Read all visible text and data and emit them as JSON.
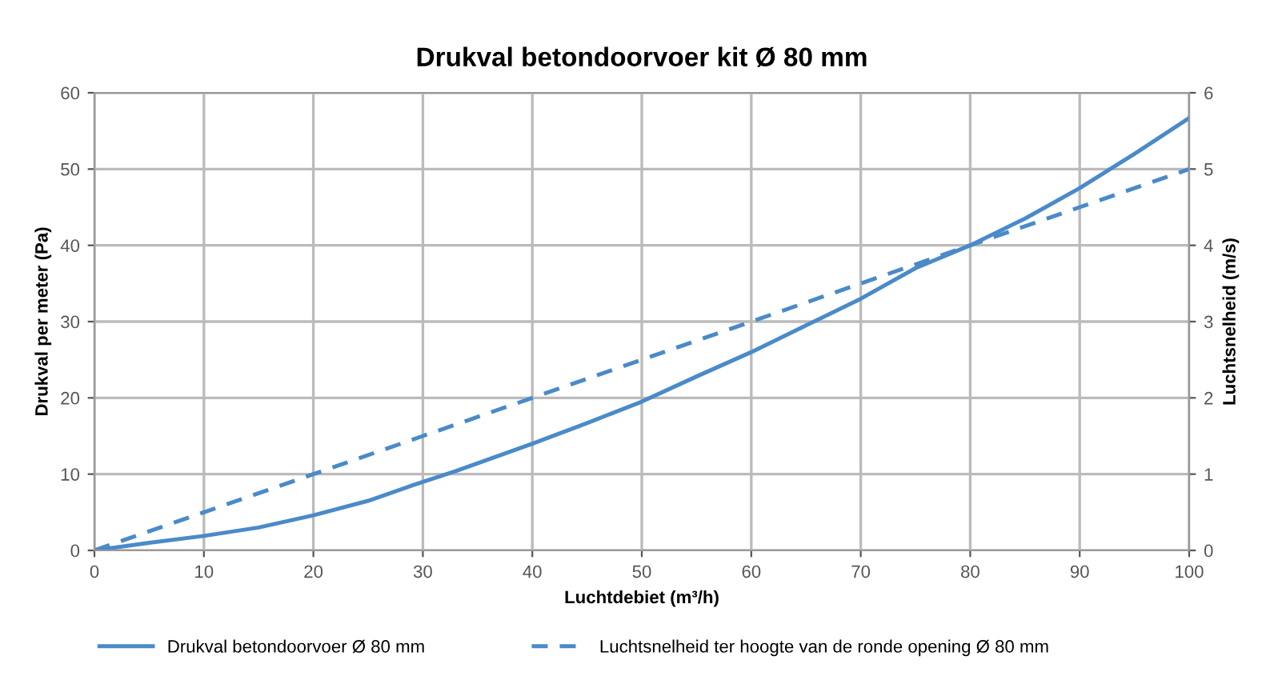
{
  "chart_data": {
    "type": "line",
    "title": "Drukval betondoorvoer kit Ø 80 mm",
    "xlabel": "Luchtdebiet (m³/h)",
    "ylabel": "Drukval per meter (Pa)",
    "y2label": "Luchtsnelheid (m/s)",
    "xlim": [
      0,
      100
    ],
    "xticks": [
      0,
      10,
      20,
      30,
      40,
      50,
      60,
      70,
      80,
      90,
      100
    ],
    "ylim": [
      0,
      60
    ],
    "yticks": [
      0,
      10,
      20,
      30,
      40,
      50,
      60
    ],
    "y2lim": [
      0,
      6
    ],
    "y2ticks": [
      0,
      1,
      2,
      3,
      4,
      5,
      6
    ],
    "grid": true,
    "legend": "bottom",
    "marker": "none",
    "series": [
      {
        "name": "Drukval betondoorvoer Ø 80 mm",
        "color": "#4a8ac9",
        "line_style": "solid",
        "x": [
          0,
          5,
          10,
          15,
          20,
          25,
          29,
          33,
          40,
          45,
          50,
          55,
          60,
          65,
          70,
          75,
          80,
          85,
          90,
          95,
          100
        ],
        "values": [
          0,
          1,
          1.9,
          3,
          4.6,
          6.5,
          8.5,
          10.4,
          14,
          16.7,
          19.5,
          22.8,
          26,
          29.5,
          33,
          37,
          40,
          43.5,
          47.5,
          52,
          56.7
        ]
      },
      {
        "name": "Luchtsnelheid ter hoogte van de ronde opening Ø 80 mm",
        "color": "#4a8ac9",
        "line_style": "dashed",
        "axis": "y2",
        "x": [
          0,
          10,
          20,
          30,
          40,
          50,
          60,
          70,
          80,
          90,
          100
        ],
        "values": [
          0,
          0.5,
          1,
          1.5,
          2,
          2.5,
          3,
          3.5,
          4,
          4.5,
          5
        ]
      }
    ]
  }
}
